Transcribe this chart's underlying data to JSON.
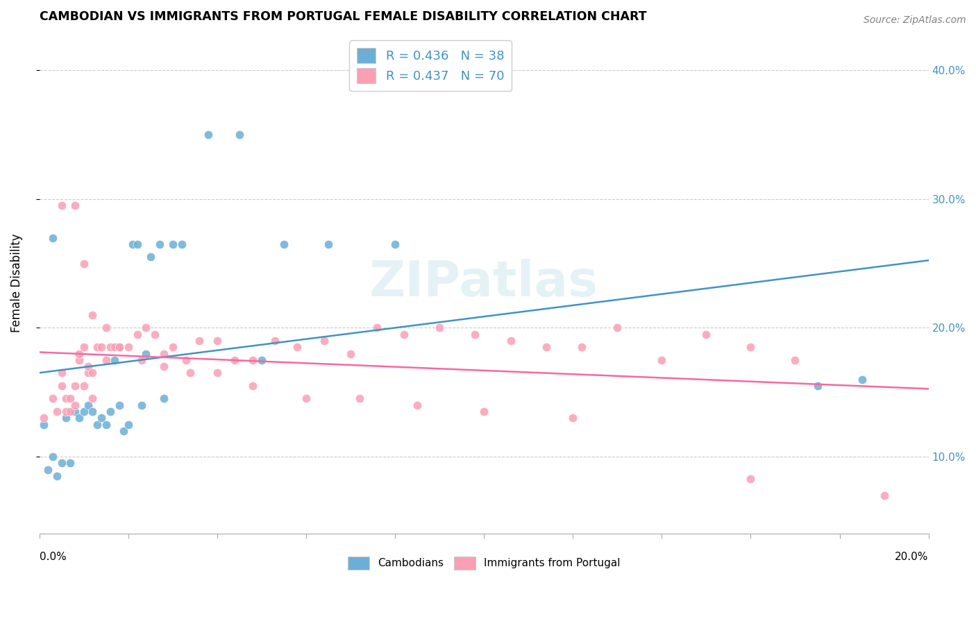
{
  "title": "CAMBODIAN VS IMMIGRANTS FROM PORTUGAL FEMALE DISABILITY CORRELATION CHART",
  "source": "Source: ZipAtlas.com",
  "ylabel": "Female Disability",
  "ytick_values": [
    0.1,
    0.2,
    0.3,
    0.4
  ],
  "ytick_labels": [
    "10.0%",
    "20.0%",
    "30.0%",
    "40.0%"
  ],
  "xlim": [
    0.0,
    0.2
  ],
  "ylim": [
    0.04,
    0.43
  ],
  "watermark": "ZIPatlas",
  "legend1_label": "R = 0.436   N = 38",
  "legend2_label": "R = 0.437   N = 70",
  "blue_color": "#6baed6",
  "pink_color": "#fa9fb5",
  "blue_line_color": "#4292c6",
  "pink_line_color": "#f768a1",
  "cambodian_x": [
    0.001,
    0.002,
    0.003,
    0.004,
    0.005,
    0.006,
    0.007,
    0.008,
    0.009,
    0.01,
    0.011,
    0.012,
    0.013,
    0.014,
    0.015,
    0.016,
    0.017,
    0.018,
    0.019,
    0.02,
    0.021,
    0.022,
    0.023,
    0.024,
    0.025,
    0.027,
    0.028,
    0.03,
    0.032,
    0.038,
    0.045,
    0.055,
    0.065,
    0.08,
    0.05,
    0.175,
    0.185,
    0.003
  ],
  "cambodian_y": [
    0.125,
    0.09,
    0.1,
    0.085,
    0.095,
    0.13,
    0.095,
    0.135,
    0.13,
    0.135,
    0.14,
    0.135,
    0.125,
    0.13,
    0.125,
    0.135,
    0.175,
    0.14,
    0.12,
    0.125,
    0.265,
    0.265,
    0.14,
    0.18,
    0.255,
    0.265,
    0.145,
    0.265,
    0.265,
    0.35,
    0.35,
    0.265,
    0.265,
    0.265,
    0.175,
    0.155,
    0.16,
    0.27
  ],
  "portugal_x": [
    0.001,
    0.003,
    0.004,
    0.005,
    0.005,
    0.006,
    0.006,
    0.007,
    0.007,
    0.008,
    0.008,
    0.009,
    0.009,
    0.01,
    0.01,
    0.011,
    0.011,
    0.012,
    0.012,
    0.013,
    0.014,
    0.015,
    0.016,
    0.017,
    0.018,
    0.02,
    0.022,
    0.024,
    0.026,
    0.028,
    0.03,
    0.033,
    0.036,
    0.04,
    0.044,
    0.048,
    0.053,
    0.058,
    0.064,
    0.07,
    0.076,
    0.082,
    0.09,
    0.098,
    0.106,
    0.114,
    0.122,
    0.13,
    0.14,
    0.15,
    0.16,
    0.17,
    0.005,
    0.008,
    0.01,
    0.012,
    0.015,
    0.018,
    0.023,
    0.028,
    0.034,
    0.04,
    0.048,
    0.06,
    0.072,
    0.085,
    0.1,
    0.12,
    0.16,
    0.19
  ],
  "portugal_y": [
    0.13,
    0.145,
    0.135,
    0.155,
    0.165,
    0.135,
    0.145,
    0.135,
    0.145,
    0.155,
    0.14,
    0.175,
    0.18,
    0.185,
    0.155,
    0.165,
    0.17,
    0.145,
    0.165,
    0.185,
    0.185,
    0.175,
    0.185,
    0.185,
    0.185,
    0.185,
    0.195,
    0.2,
    0.195,
    0.18,
    0.185,
    0.175,
    0.19,
    0.19,
    0.175,
    0.175,
    0.19,
    0.185,
    0.19,
    0.18,
    0.2,
    0.195,
    0.2,
    0.195,
    0.19,
    0.185,
    0.185,
    0.2,
    0.175,
    0.195,
    0.185,
    0.175,
    0.295,
    0.295,
    0.25,
    0.21,
    0.2,
    0.185,
    0.175,
    0.17,
    0.165,
    0.165,
    0.155,
    0.145,
    0.145,
    0.14,
    0.135,
    0.13,
    0.083,
    0.07
  ]
}
